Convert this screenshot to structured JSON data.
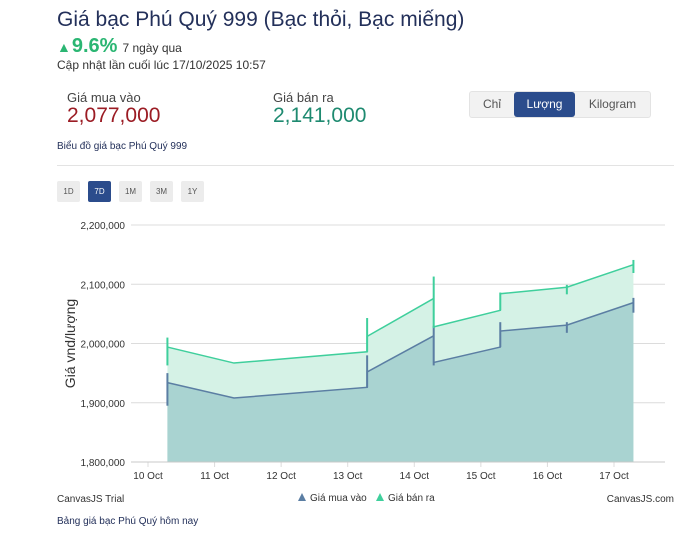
{
  "header": {
    "title": "Giá bạc Phú Quý 999 (Bạc thỏi, Bạc miếng)",
    "change_arrow": "▲",
    "change_pct": "9.6%",
    "change_period": "7 ngày qua",
    "updated": "Cập nhật lần cuối lúc 17/10/2025 10:57"
  },
  "prices": {
    "buy_label": "Giá mua vào",
    "buy_value": "2,077,000",
    "sell_label": "Giá bán ra",
    "sell_value": "2,141,000"
  },
  "unit_tabs": [
    {
      "label": "Chỉ",
      "active": false
    },
    {
      "label": "Lượng",
      "active": true
    },
    {
      "label": "Kilogram",
      "active": false
    }
  ],
  "chart_link": "Biểu đồ giá bạc Phú Quý 999",
  "range_tabs": [
    {
      "label": "1D",
      "active": false
    },
    {
      "label": "7D",
      "active": true
    },
    {
      "label": "1M",
      "active": false
    },
    {
      "label": "3M",
      "active": false
    },
    {
      "label": "1Y",
      "active": false
    }
  ],
  "colors": {
    "buy_line": "#5b7ea3",
    "buy_fill": "#a9d3d1",
    "sell_line": "#3fcf9c",
    "sell_fill": "#d5f2e6",
    "accent": "#2b4c8c"
  },
  "chart_data": {
    "type": "area",
    "ylabel": "Giá vnd/lượng",
    "xlabel": "",
    "ylim": [
      1800000,
      2200000
    ],
    "y_ticks": [
      "1,800,000",
      "1,900,000",
      "2,000,000",
      "2,100,000",
      "2,200,000"
    ],
    "x_ticks": [
      "10 Oct",
      "11 Oct",
      "12 Oct",
      "13 Oct",
      "14 Oct",
      "15 Oct",
      "16 Oct",
      "17 Oct"
    ],
    "grid": true,
    "legend_position": "bottom",
    "series": [
      {
        "name": "Giá mua vào",
        "points": [
          {
            "x": "2025-10-10T07:00",
            "y": 1934000
          },
          {
            "x": "2025-10-11T07:00",
            "y": 1908000
          },
          {
            "x": "2025-10-13T07:00",
            "y": 1926000
          },
          {
            "x": "2025-10-13T07:00",
            "y": 1952000
          },
          {
            "x": "2025-10-14T07:00",
            "y": 2013000
          },
          {
            "x": "2025-10-14T07:00",
            "y": 1968000
          },
          {
            "x": "2025-10-15T07:00",
            "y": 1994000
          },
          {
            "x": "2025-10-15T07:00",
            "y": 2021000
          },
          {
            "x": "2025-10-16T07:00",
            "y": 2031000
          },
          {
            "x": "2025-10-17T07:00",
            "y": 2069000
          }
        ],
        "candles": [
          {
            "x": "2025-10-10T07:00",
            "low": 1895000,
            "high": 1950000
          },
          {
            "x": "2025-10-13T07:00",
            "low": 1926000,
            "high": 1980000
          },
          {
            "x": "2025-10-14T07:00",
            "low": 1963000,
            "high": 2030000
          },
          {
            "x": "2025-10-15T07:00",
            "low": 1994000,
            "high": 2036000
          },
          {
            "x": "2025-10-16T07:00",
            "low": 2018000,
            "high": 2036000
          },
          {
            "x": "2025-10-17T07:00",
            "low": 2052000,
            "high": 2077000
          }
        ]
      },
      {
        "name": "Giá bán ra",
        "points": [
          {
            "x": "2025-10-10T07:00",
            "y": 1994000
          },
          {
            "x": "2025-10-11T07:00",
            "y": 1967000
          },
          {
            "x": "2025-10-13T07:00",
            "y": 1986000
          },
          {
            "x": "2025-10-13T07:00",
            "y": 2012000
          },
          {
            "x": "2025-10-14T07:00",
            "y": 2076000
          },
          {
            "x": "2025-10-14T07:00",
            "y": 2028000
          },
          {
            "x": "2025-10-15T07:00",
            "y": 2056000
          },
          {
            "x": "2025-10-15T07:00",
            "y": 2084000
          },
          {
            "x": "2025-10-16T07:00",
            "y": 2095000
          },
          {
            "x": "2025-10-17T07:00",
            "y": 2133000
          }
        ],
        "candles": [
          {
            "x": "2025-10-10T07:00",
            "low": 1963000,
            "high": 2010000
          },
          {
            "x": "2025-10-13T07:00",
            "low": 1986000,
            "high": 2043000
          },
          {
            "x": "2025-10-14T07:00",
            "low": 2026000,
            "high": 2113000
          },
          {
            "x": "2025-10-15T07:00",
            "low": 2056000,
            "high": 2086000
          },
          {
            "x": "2025-10-16T07:00",
            "low": 2083000,
            "high": 2099000
          },
          {
            "x": "2025-10-17T07:00",
            "low": 2119000,
            "high": 2141000
          }
        ]
      }
    ],
    "credit_left": "CanvasJS Trial",
    "credit_right": "CanvasJS.com"
  },
  "footnote": "Bảng giá bạc Phú Quý hôm nay"
}
